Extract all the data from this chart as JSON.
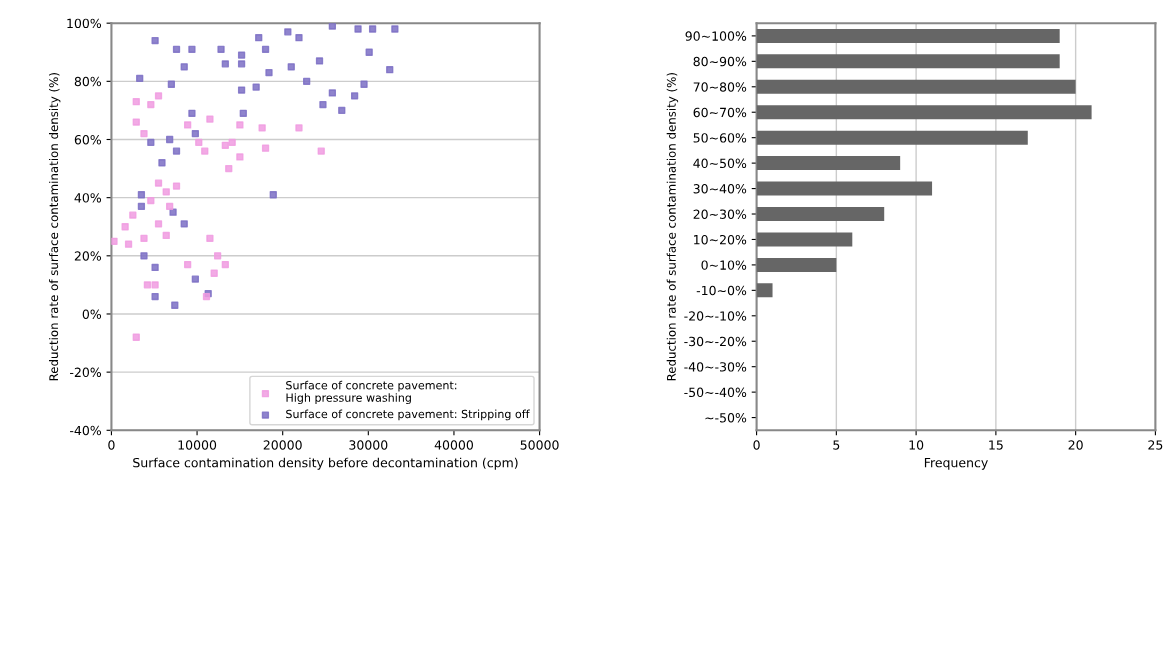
{
  "chart_data": [
    {
      "type": "scatter",
      "xlabel": "Surface contamination density before decontamination (cpm)",
      "ylabel": "Reduction rate of surface contamination density (%)",
      "xlim": [
        0,
        50000
      ],
      "xticks": [
        0,
        10000,
        20000,
        30000,
        40000,
        50000
      ],
      "ylim": [
        -40,
        100
      ],
      "yticks": [
        {
          "value": -40,
          "label": "-40%"
        },
        {
          "value": -20,
          "label": "-20%"
        },
        {
          "value": 0,
          "label": "0%"
        },
        {
          "value": 20,
          "label": "20%"
        },
        {
          "value": 40,
          "label": "40%"
        },
        {
          "value": 60,
          "label": "60%"
        },
        {
          "value": 80,
          "label": "80%"
        },
        {
          "value": 100,
          "label": "100%"
        }
      ],
      "grid": "y",
      "legend": "bottom right",
      "marker": "square",
      "series": [
        {
          "name": "Surface of concrete pavement:\nHigh pressure washing",
          "color": "#f09be0",
          "x": [
            2900,
            3800,
            5500,
            4600,
            2900,
            11500,
            14100,
            15000,
            13700,
            17600,
            21900,
            18000,
            24500,
            5500,
            6400,
            4600,
            6800,
            5500,
            2500,
            2000,
            3800,
            6400,
            11500,
            12400,
            13300,
            12000,
            8900,
            4200,
            5100,
            11100,
            2900,
            15000,
            8900,
            10200,
            7600,
            1600,
            300,
            10900,
            13300
          ],
          "values": [
            66,
            62,
            75,
            72,
            73,
            67,
            59,
            54,
            50,
            64,
            64,
            57,
            56,
            45,
            42,
            39,
            37,
            31,
            34,
            24,
            26,
            27,
            26,
            20,
            17,
            14,
            17,
            10,
            10,
            6,
            -8,
            65,
            65,
            59,
            44,
            30,
            25,
            56,
            58
          ]
        },
        {
          "name": "Surface of concrete pavement: Stripping off",
          "color": "#7b6fc4",
          "x": [
            5100,
            7600,
            9400,
            12800,
            15200,
            17200,
            18000,
            20600,
            21900,
            25800,
            28800,
            30500,
            33100,
            30100,
            24300,
            18400,
            21000,
            22800,
            32500,
            29500,
            28400,
            25800,
            24700,
            26900,
            16900,
            15200,
            15400,
            9400,
            6800,
            4600,
            9800,
            7600,
            5900,
            18900,
            3500,
            3500,
            7200,
            8500,
            3800,
            5100,
            9800,
            11300,
            5100,
            7400,
            15200,
            13300,
            8500,
            3300,
            7000
          ],
          "values": [
            94,
            91,
            91,
            91,
            89,
            95,
            91,
            97,
            95,
            99,
            98,
            98,
            98,
            90,
            87,
            83,
            85,
            80,
            84,
            79,
            75,
            76,
            72,
            70,
            78,
            77,
            69,
            69,
            60,
            59,
            62,
            56,
            52,
            41,
            41,
            37,
            35,
            31,
            20,
            16,
            12,
            7,
            6,
            3,
            86,
            86,
            85,
            81,
            79
          ]
        }
      ]
    },
    {
      "type": "bar",
      "orientation": "horizontal",
      "xlabel": "Frequency",
      "ylabel": "Reduction rate of surface contamination density (%)",
      "categories": [
        "90~100%",
        "80~90%",
        "70~80%",
        "60~70%",
        "50~60%",
        "40~50%",
        "30~40%",
        "20~30%",
        "10~20%",
        "0~10%",
        "-10~0%",
        "-20~-10%",
        "-30~-20%",
        "-40~-30%",
        "-50~-40%",
        "~-50%"
      ],
      "values": [
        19,
        19,
        20,
        21,
        17,
        9,
        11,
        8,
        6,
        5,
        1,
        0,
        0,
        0,
        0,
        0
      ],
      "color": "#666666",
      "xlim": [
        0,
        25
      ],
      "xticks": [
        0,
        5,
        10,
        15,
        20,
        25
      ],
      "grid": "x"
    }
  ]
}
